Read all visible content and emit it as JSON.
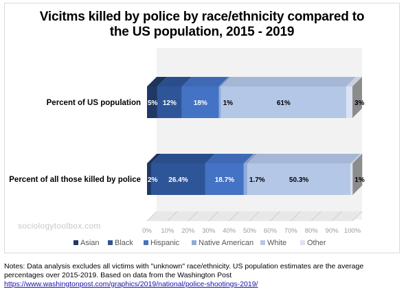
{
  "chart_data": {
    "type": "bar",
    "orientation": "horizontal",
    "stacked": true,
    "style": "3d",
    "title": "Vicitms killed by police by race/ethnicity compared to the US population, 2015 - 2019",
    "title_lines": [
      "Vicitms killed by police by race/ethnicity compared to",
      "the US population, 2015 - 2019"
    ],
    "categories": [
      "Percent of US population",
      "Percent of all those killed by police"
    ],
    "series": [
      {
        "name": "Asian",
        "color": "#1f3864",
        "values": [
          5,
          2
        ],
        "labels": [
          "5%",
          "2%"
        ]
      },
      {
        "name": "Black",
        "color": "#2e5597",
        "values": [
          12,
          26.4
        ],
        "labels": [
          "12%",
          "26.4%"
        ]
      },
      {
        "name": "Hispanic",
        "color": "#4472c4",
        "values": [
          18,
          18.7
        ],
        "labels": [
          "18%",
          "18.7%"
        ]
      },
      {
        "name": "Native American",
        "color": "#8eaadb",
        "values": [
          1,
          1.7
        ],
        "labels": [
          "1%",
          "1.7%"
        ]
      },
      {
        "name": "White",
        "color": "#b4c7e7",
        "values": [
          61,
          50.3
        ],
        "labels": [
          "61%",
          "50.3%"
        ]
      },
      {
        "name": "Other",
        "color": "#dae3f3",
        "values": [
          3,
          1
        ],
        "labels": [
          "3%",
          "1%"
        ]
      }
    ],
    "xlim": [
      0,
      100
    ],
    "x_ticks": [
      "0%",
      "10%",
      "20%",
      "30%",
      "40%",
      "50%",
      "60%",
      "70%",
      "80%",
      "90%",
      "100%"
    ],
    "grid": false,
    "legend_position": "bottom"
  },
  "watermark": "sociologytoolbox.com",
  "notes": {
    "text": "Notes: Data analysis excludes all victims with \"unknown\" race/ethnicity. US population estimates are the average percentages over 2015-2019. Based on data from the Washington Post ",
    "link": "https://www.washingtonpost.com/graphics/2019/national/police-shootings-2019/"
  }
}
